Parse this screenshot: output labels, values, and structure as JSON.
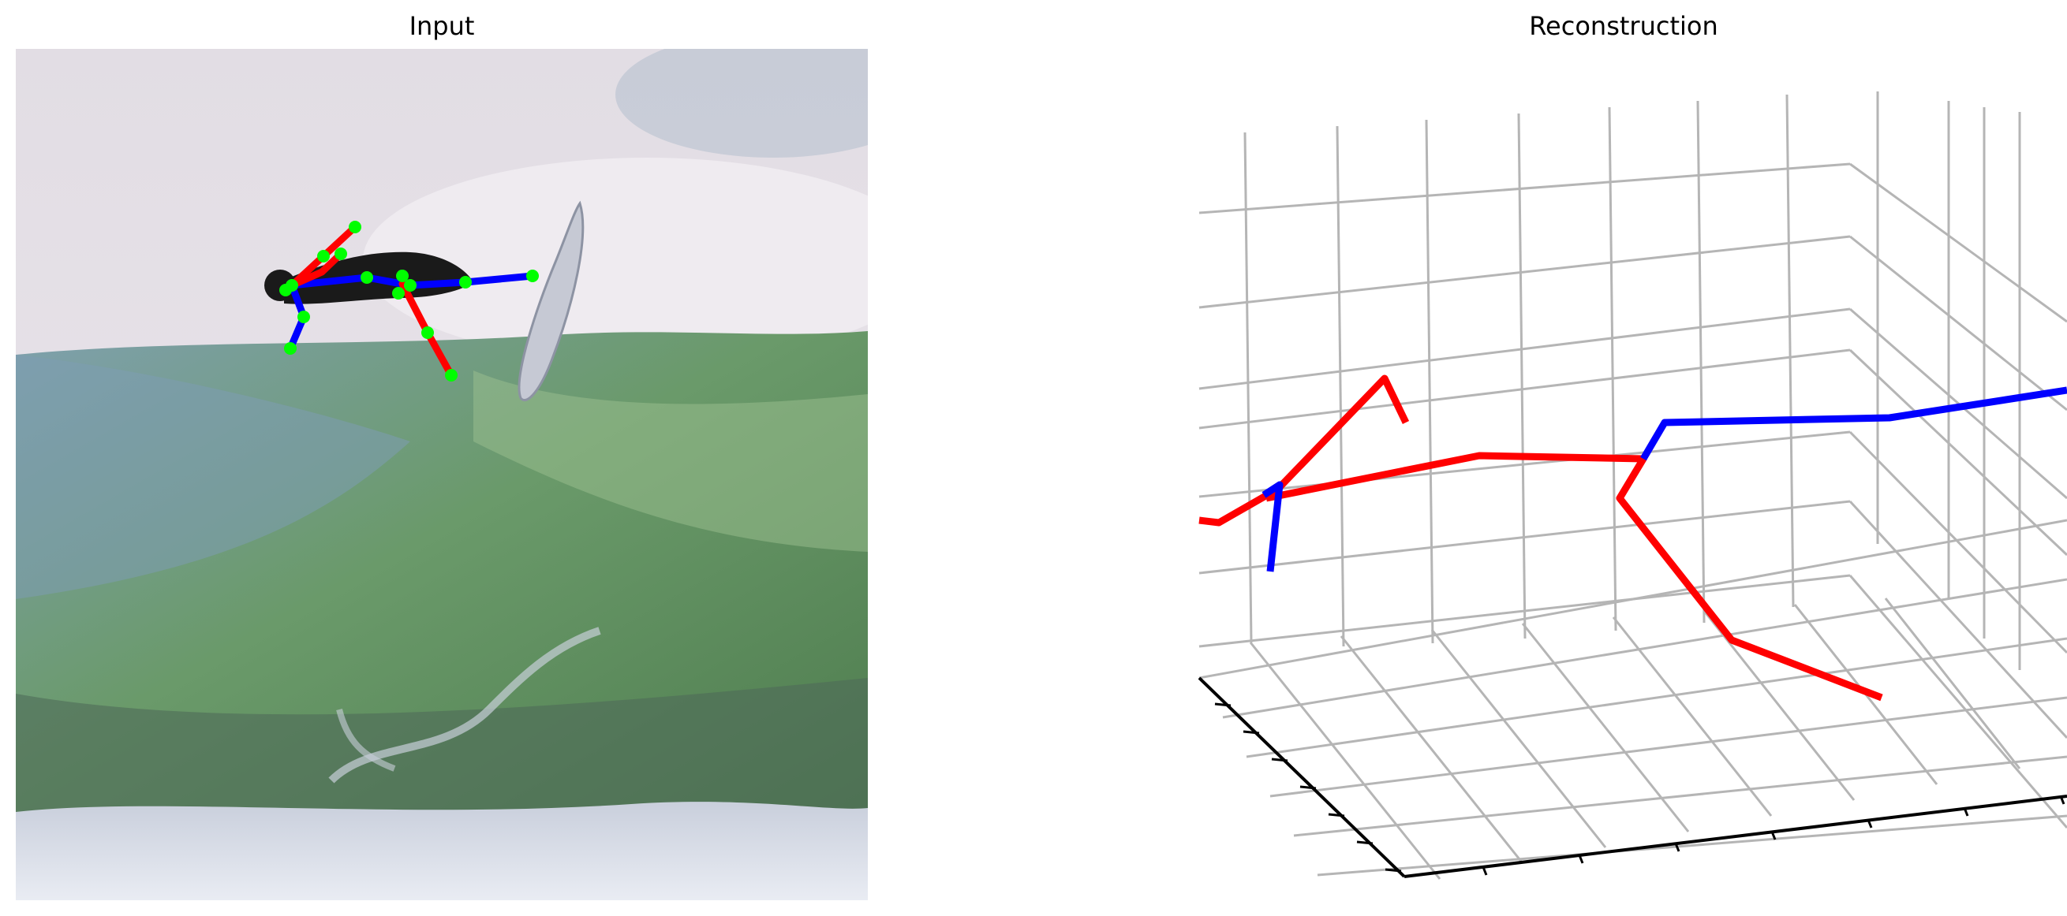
{
  "panels": {
    "left": {
      "title": "Input"
    },
    "right": {
      "title": "Reconstruction"
    }
  },
  "colors": {
    "left_limb": "#ff0000",
    "right_limb": "#0000ff",
    "joint_marker": "#00ff00",
    "grid": "#b5b5b5",
    "axis": "#000000",
    "sky": "#e8e4e8",
    "wave_green": "#5d8f55",
    "wave_blue": "#6f93ab",
    "foam": "#dfe3ee",
    "surfer": "#1a1a1a",
    "board": "#c9ccd6"
  },
  "icons": {
    "input_image": "surfer-photo",
    "pose_overlay": "skeleton-overlay"
  },
  "chart_data": [
    {
      "type": "image-with-pose-overlay",
      "title": "Input",
      "xlabel": "",
      "ylabel": "",
      "grid": false
    },
    {
      "type": "3d-skeleton",
      "title": "Reconstruction",
      "xlabel": "",
      "ylabel": "",
      "zlabel": "",
      "grid": true,
      "tick_labels": []
    }
  ]
}
